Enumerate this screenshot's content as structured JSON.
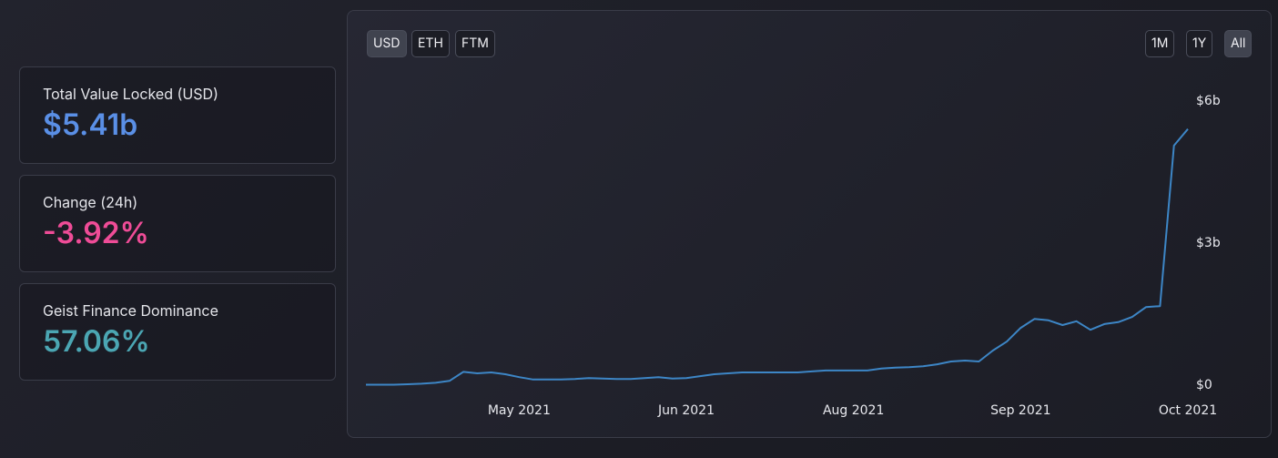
{
  "stats": [
    {
      "label": "Total Value Locked (USD)",
      "value": "$5.41b"
    },
    {
      "label": "Change (24h)",
      "value": "-3.92%"
    },
    {
      "label": "Geist Finance Dominance",
      "value": "57.06%"
    }
  ],
  "buttons": {
    "currency": [
      "USD",
      "ETH",
      "FTM"
    ],
    "range": [
      "1M",
      "1Y",
      "All"
    ]
  },
  "chart_data": {
    "type": "line",
    "color": "#3d86c6",
    "categories": [
      null,
      null,
      null,
      null,
      null,
      null,
      null,
      null,
      null,
      null,
      null,
      "May 2021",
      null,
      null,
      null,
      null,
      null,
      null,
      null,
      null,
      null,
      null,
      null,
      "Jun 2021",
      null,
      null,
      null,
      null,
      null,
      null,
      null,
      null,
      null,
      null,
      null,
      "Aug 2021",
      null,
      null,
      null,
      null,
      null,
      null,
      null,
      null,
      null,
      null,
      null,
      "Sep 2021",
      null,
      null,
      null,
      null,
      null,
      null,
      null,
      null,
      null,
      null,
      null,
      "Oct 2021"
    ],
    "values": [
      10000000,
      10000000,
      10000000,
      20000000,
      30000000,
      50000000,
      90000000,
      280000000,
      250000000,
      270000000,
      230000000,
      170000000,
      120000000,
      120000000,
      120000000,
      130000000,
      150000000,
      140000000,
      130000000,
      130000000,
      150000000,
      170000000,
      140000000,
      150000000,
      190000000,
      230000000,
      250000000,
      270000000,
      270000000,
      270000000,
      270000000,
      270000000,
      290000000,
      310000000,
      310000000,
      310000000,
      310000000,
      350000000,
      370000000,
      380000000,
      400000000,
      440000000,
      500000000,
      520000000,
      500000000,
      730000000,
      920000000,
      1210000000,
      1400000000,
      1370000000,
      1270000000,
      1350000000,
      1170000000,
      1290000000,
      1330000000,
      1440000000,
      1650000000,
      1670000000,
      5060000000,
      5410000000
    ],
    "ylim": [
      0,
      6000000000
    ],
    "yticks": [
      {
        "value": 0,
        "label": "$0"
      },
      {
        "value": 3000000000,
        "label": "$3b"
      },
      {
        "value": 6000000000,
        "label": "$6b"
      }
    ]
  }
}
